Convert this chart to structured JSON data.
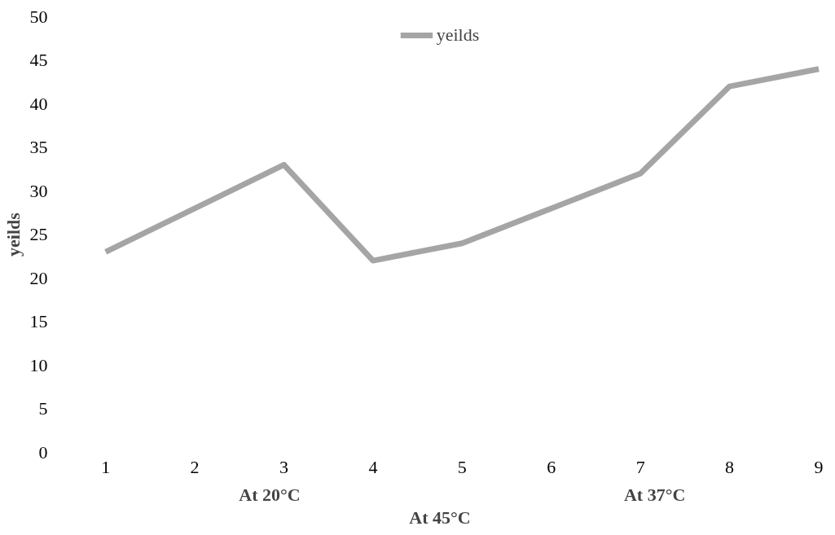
{
  "chart_data": {
    "type": "line",
    "xlabel": "At 45°C",
    "ylabel": "yeilds",
    "annotations": [
      "At 20°C",
      "At 37°C"
    ],
    "categories": [
      "1",
      "2",
      "3",
      "4",
      "5",
      "6",
      "7",
      "8",
      "9"
    ],
    "ylim": [
      0,
      50
    ],
    "yticks": [
      0,
      5,
      10,
      15,
      20,
      25,
      30,
      35,
      40,
      45,
      50
    ],
    "series": [
      {
        "name": "yeilds",
        "color": "#a5a5a5",
        "values": [
          23,
          28,
          33,
          22,
          24,
          28,
          32,
          42,
          44
        ]
      }
    ],
    "grid": false,
    "legend": "top",
    "marker": "none",
    "line_style": "solid"
  }
}
